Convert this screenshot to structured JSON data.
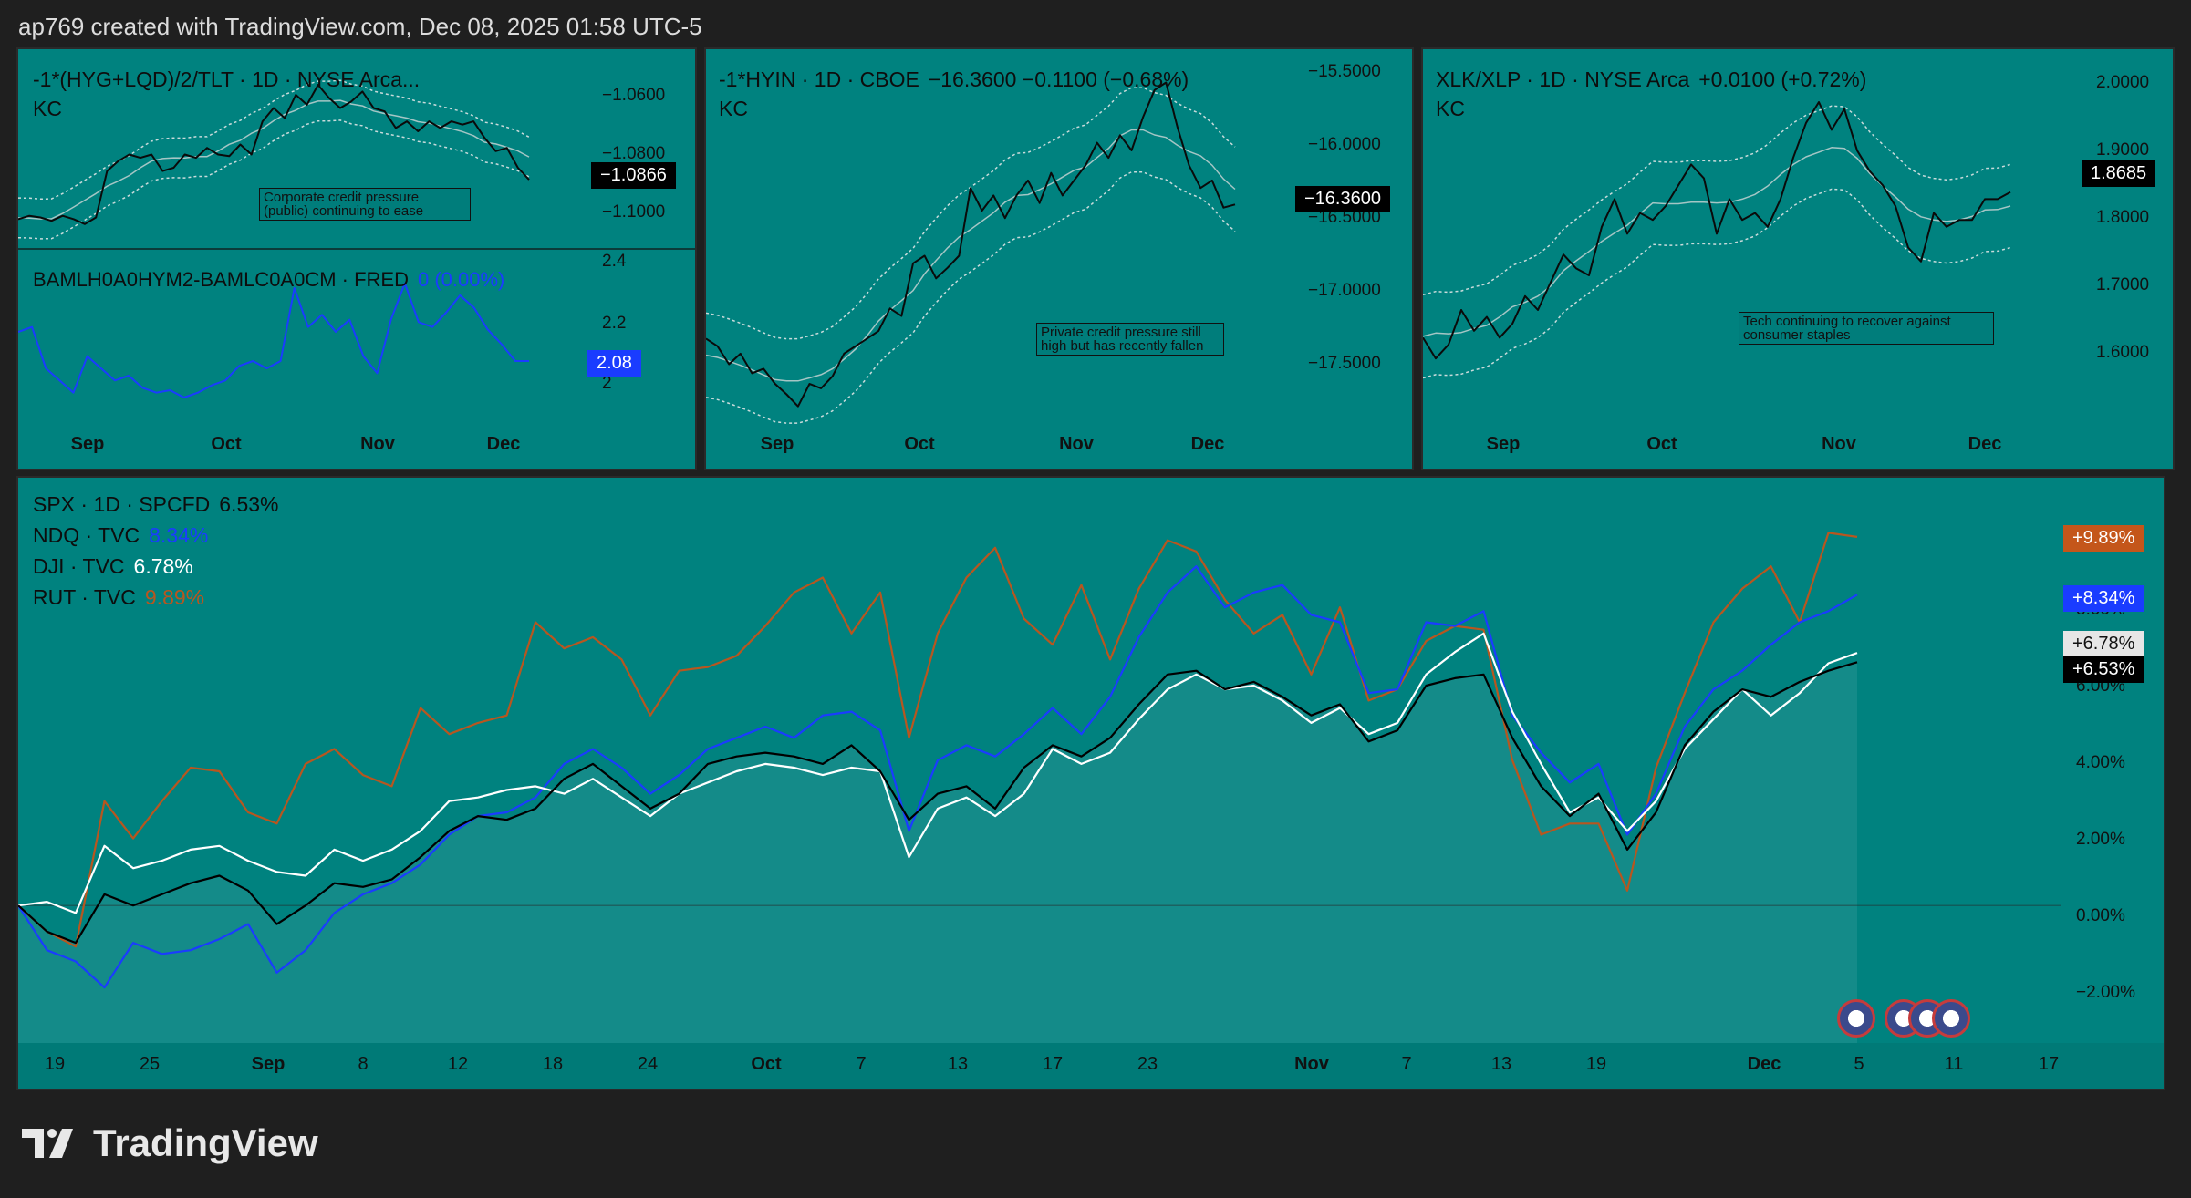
{
  "header": {
    "text": "ap769 created with TradingView.com, Dec 08, 2025 01:58 UTC-5"
  },
  "brand": {
    "logo_text": "TradingView"
  },
  "panel1": {
    "title": "-1*(HYG+LQD)/2/TLT · 1D · NYSE Arca...",
    "indicator": "KC",
    "price_label": "−1.0866",
    "yticks": [
      "−1.0600",
      "−1.0800",
      "−1.1000"
    ],
    "note": "Corporate credit pressure (public) continuing to ease",
    "sub_title": "BAMLH0A0HYM2-BAMLC0A0CM · FRED",
    "sub_change": "0 (0.00%)",
    "sub_price_label": "2.08",
    "sub_yticks": [
      "2.4",
      "2.2",
      "2"
    ],
    "xticks": [
      "Sep",
      "Oct",
      "Nov",
      "Dec"
    ]
  },
  "panel2": {
    "title": "-1*HYIN · 1D · CBOE",
    "values": "−16.3600  −0.1100 (−0.68%)",
    "indicator": "KC",
    "price_label": "−16.3600",
    "yticks": [
      "−15.5000",
      "−16.0000",
      "−16.5000",
      "−17.0000",
      "−17.5000"
    ],
    "note": "Private credit pressure still high but has recently fallen",
    "xticks": [
      "Sep",
      "Oct",
      "Nov",
      "Dec"
    ]
  },
  "panel3": {
    "title": "XLK/XLP · 1D · NYSE Arca",
    "values": "+0.0100 (+0.72%)",
    "indicator": "KC",
    "price_label": "1.8685",
    "yticks": [
      "2.0000",
      "1.9000",
      "1.8000",
      "1.7000",
      "1.6000"
    ],
    "note": "Tech continuing to recover against consumer staples",
    "xticks": [
      "Sep",
      "Oct",
      "Nov",
      "Dec"
    ]
  },
  "main": {
    "legend": [
      {
        "name": "SPX · 1D · SPCFD",
        "value": "6.53%"
      },
      {
        "name": "NDQ · TVC",
        "value": "8.34%"
      },
      {
        "name": "DJI · TVC",
        "value": "6.78%"
      },
      {
        "name": "RUT · TVC",
        "value": "9.89%"
      }
    ],
    "price_labels": [
      "+9.89%",
      "+8.34%",
      "+6.78%",
      "+6.53%"
    ],
    "yticks": [
      "8.00%",
      "6.00%",
      "4.00%",
      "2.00%",
      "0.00%",
      "−2.00%"
    ],
    "xticks": [
      "19",
      "25",
      "Sep",
      "8",
      "12",
      "18",
      "24",
      "Oct",
      "7",
      "13",
      "17",
      "23",
      "Nov",
      "7",
      "13",
      "19",
      "Dec",
      "5",
      "11",
      "17"
    ]
  },
  "colors": {
    "background": "#1f1f1f",
    "panel_bg": "#00827f",
    "spx": "#000000",
    "ndq": "#1a3cff",
    "dji": "#ffffff",
    "rut": "#b8561f",
    "spread_line": "#1a3cff"
  },
  "chart_data": [
    {
      "type": "line",
      "title": "-1*(HYG+LQD)/2/TLT · 1D · NYSE Arca...",
      "x_range": [
        "Aug 2025",
        "Dec 2025"
      ],
      "ylim": [
        -1.105,
        -1.05
      ],
      "series": [
        {
          "name": "-1*(HYG+LQD)/2/TLT",
          "values": [
            -1.0985,
            -1.0975,
            -1.098,
            -1.099,
            -1.0975,
            -1.0985,
            -1.1,
            -1.098,
            -1.084,
            -1.081,
            -1.079,
            -1.08,
            -1.079,
            -1.084,
            -1.083,
            -1.079,
            -1.08,
            -1.077,
            -1.079,
            -1.0795,
            -1.076,
            -1.079,
            -1.069,
            -1.065,
            -1.068,
            -1.061,
            -1.064,
            -1.058,
            -1.062,
            -1.065,
            -1.063,
            -1.06,
            -1.065,
            -1.066,
            -1.071,
            -1.069,
            -1.072,
            -1.069,
            -1.071,
            -1.069,
            -1.07,
            -1.069,
            -1.074,
            -1.078,
            -1.077,
            -1.083,
            -1.0866
          ]
        }
      ]
    },
    {
      "type": "line",
      "title": "BAMLH0A0HYM2-BAMLC0A0CM · FRED",
      "x_range": [
        "Aug 2025",
        "Dec 2025"
      ],
      "ylim": [
        1.9,
        2.5
      ],
      "series": [
        {
          "name": "BAMLH0A0HYM2-BAMLC0A0CM",
          "values": [
            2.2,
            2.22,
            2.05,
            2.0,
            1.95,
            2.1,
            2.05,
            2.0,
            2.02,
            1.97,
            1.95,
            1.96,
            1.93,
            1.95,
            1.98,
            2.0,
            2.06,
            2.08,
            2.05,
            2.08,
            2.38,
            2.22,
            2.27,
            2.2,
            2.25,
            2.1,
            2.03,
            2.25,
            2.4,
            2.24,
            2.22,
            2.28,
            2.35,
            2.3,
            2.21,
            2.15,
            2.08,
            2.08
          ]
        }
      ]
    },
    {
      "type": "line",
      "title": "-1*HYIN · 1D · CBOE",
      "x_range": [
        "Aug 2025",
        "Dec 2025"
      ],
      "ylim": [
        -17.75,
        -15.45
      ],
      "series": [
        {
          "name": "-1*HYIN",
          "values": [
            -17.25,
            -17.3,
            -17.42,
            -17.35,
            -17.48,
            -17.45,
            -17.55,
            -17.62,
            -17.7,
            -17.55,
            -17.58,
            -17.5,
            -17.35,
            -17.3,
            -17.25,
            -17.2,
            -17.05,
            -17.1,
            -16.75,
            -16.7,
            -16.85,
            -16.78,
            -16.7,
            -16.25,
            -16.4,
            -16.3,
            -16.45,
            -16.3,
            -16.2,
            -16.35,
            -16.15,
            -16.3,
            -16.2,
            -16.1,
            -15.95,
            -16.05,
            -15.9,
            -16.0,
            -15.78,
            -15.6,
            -15.55,
            -15.85,
            -16.1,
            -16.25,
            -16.2,
            -16.38,
            -16.36
          ]
        }
      ]
    },
    {
      "type": "line",
      "title": "XLK/XLP · 1D · NYSE Arca",
      "x_range": [
        "Aug 2025",
        "Dec 2025"
      ],
      "ylim": [
        1.55,
        2.05
      ],
      "series": [
        {
          "name": "XLK/XLP",
          "values": [
            1.66,
            1.63,
            1.65,
            1.7,
            1.67,
            1.69,
            1.66,
            1.68,
            1.72,
            1.7,
            1.74,
            1.78,
            1.76,
            1.75,
            1.82,
            1.86,
            1.81,
            1.84,
            1.83,
            1.85,
            1.88,
            1.91,
            1.89,
            1.81,
            1.86,
            1.83,
            1.84,
            1.82,
            1.86,
            1.92,
            1.97,
            2.0,
            1.96,
            1.99,
            1.93,
            1.9,
            1.88,
            1.85,
            1.79,
            1.77,
            1.84,
            1.82,
            1.83,
            1.83,
            1.86,
            1.86,
            1.87
          ]
        }
      ]
    },
    {
      "type": "line",
      "title": "",
      "ylabel": "",
      "x_range": [
        "Aug 19, 2025",
        "Dec 05, 2025"
      ],
      "ylim": [
        -3.2,
        10.5
      ],
      "series": [
        {
          "name": "SPX · 1D · SPCFD",
          "values": [
            0.0,
            -0.7,
            -1.0,
            0.3,
            0.0,
            0.3,
            0.6,
            0.8,
            0.4,
            -0.5,
            0.0,
            0.6,
            0.5,
            0.7,
            1.3,
            2.0,
            2.4,
            2.3,
            2.6,
            3.4,
            3.8,
            3.2,
            2.6,
            3.0,
            3.8,
            4.0,
            4.1,
            4.0,
            3.8,
            4.3,
            3.6,
            2.3,
            3.0,
            3.2,
            2.6,
            3.7,
            4.3,
            4.0,
            4.5,
            5.4,
            6.2,
            6.3,
            5.8,
            6.0,
            5.6,
            5.1,
            5.4,
            4.4,
            4.7,
            5.9,
            6.1,
            6.2,
            4.5,
            3.2,
            2.4,
            3.0,
            1.5,
            2.5,
            4.3,
            5.2,
            5.8,
            5.6,
            6.0,
            6.3,
            6.53
          ]
        },
        {
          "name": "NDQ · TVC",
          "values": [
            0.0,
            -1.2,
            -1.5,
            -2.2,
            -1.0,
            -1.3,
            -1.2,
            -0.9,
            -0.5,
            -1.8,
            -1.2,
            -0.2,
            0.3,
            0.6,
            1.1,
            1.9,
            2.4,
            2.5,
            2.9,
            3.8,
            4.2,
            3.7,
            3.0,
            3.5,
            4.2,
            4.5,
            4.8,
            4.5,
            5.1,
            5.2,
            4.7,
            2.0,
            3.9,
            4.3,
            4.0,
            4.6,
            5.3,
            4.6,
            5.6,
            7.2,
            8.4,
            9.1,
            8.0,
            8.4,
            8.6,
            7.8,
            7.6,
            5.7,
            5.8,
            7.6,
            7.5,
            7.9,
            5.1,
            4.1,
            3.3,
            3.8,
            1.9,
            3.0,
            4.8,
            5.8,
            6.3,
            7.0,
            7.6,
            7.9,
            8.34
          ]
        },
        {
          "name": "DJI · TVC",
          "values": [
            0.0,
            0.1,
            -0.2,
            1.6,
            1.0,
            1.2,
            1.5,
            1.6,
            1.2,
            0.9,
            0.8,
            1.5,
            1.2,
            1.5,
            2.0,
            2.8,
            2.9,
            3.1,
            3.2,
            3.0,
            3.4,
            2.9,
            2.4,
            3.0,
            3.3,
            3.6,
            3.8,
            3.7,
            3.5,
            3.7,
            3.6,
            1.3,
            2.6,
            2.9,
            2.4,
            3.0,
            4.2,
            3.8,
            4.1,
            5.0,
            5.8,
            6.2,
            5.8,
            5.9,
            5.5,
            4.9,
            5.3,
            4.6,
            4.9,
            6.2,
            6.8,
            7.3,
            5.2,
            3.8,
            2.5,
            2.9,
            2.0,
            2.8,
            4.2,
            5.0,
            5.8,
            5.1,
            5.7,
            6.5,
            6.78
          ]
        },
        {
          "name": "RUT · TVC",
          "values": [
            0.0,
            -0.7,
            -1.1,
            2.8,
            1.8,
            2.8,
            3.7,
            3.6,
            2.5,
            2.2,
            3.8,
            4.2,
            3.5,
            3.2,
            5.3,
            4.6,
            4.9,
            5.1,
            7.6,
            6.9,
            7.2,
            6.6,
            5.1,
            6.3,
            6.4,
            6.7,
            7.5,
            8.4,
            8.8,
            7.3,
            8.4,
            4.5,
            7.3,
            8.8,
            9.6,
            7.7,
            7.0,
            8.6,
            6.6,
            8.5,
            9.8,
            9.5,
            8.2,
            7.3,
            7.8,
            6.2,
            8.0,
            5.5,
            5.8,
            7.1,
            7.5,
            7.4,
            3.9,
            1.9,
            2.2,
            2.2,
            0.4,
            3.7,
            5.7,
            7.6,
            8.5,
            9.1,
            7.6,
            10.0,
            9.89
          ]
        }
      ]
    }
  ]
}
